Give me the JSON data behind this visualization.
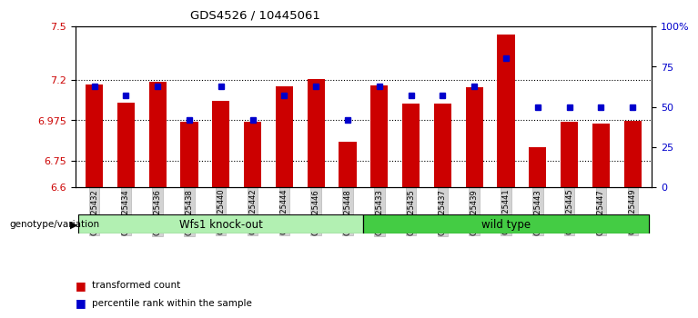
{
  "title": "GDS4526 / 10445061",
  "samples": [
    "GSM825432",
    "GSM825434",
    "GSM825436",
    "GSM825438",
    "GSM825440",
    "GSM825442",
    "GSM825444",
    "GSM825446",
    "GSM825448",
    "GSM825433",
    "GSM825435",
    "GSM825437",
    "GSM825439",
    "GSM825441",
    "GSM825443",
    "GSM825445",
    "GSM825447",
    "GSM825449"
  ],
  "red_values": [
    7.175,
    7.075,
    7.19,
    6.965,
    7.085,
    6.965,
    7.165,
    7.205,
    6.855,
    7.17,
    7.07,
    7.07,
    7.16,
    7.455,
    6.825,
    6.965,
    6.955,
    6.97
  ],
  "blue_percentiles": [
    63,
    57,
    63,
    42,
    63,
    42,
    57,
    63,
    42,
    63,
    57,
    57,
    63,
    80,
    50,
    50,
    50,
    50
  ],
  "ymin": 6.6,
  "ymax": 7.5,
  "yticks": [
    6.6,
    6.75,
    6.975,
    7.2,
    7.5
  ],
  "ytick_labels": [
    "6.6",
    "6.75",
    "6.975",
    "7.2",
    "7.5"
  ],
  "right_yticks": [
    0,
    25,
    50,
    75,
    100
  ],
  "right_ytick_labels": [
    "0",
    "25",
    "50",
    "75",
    "100%"
  ],
  "bar_color": "#cc0000",
  "dot_color": "#0000cc",
  "ko_color": "#b2f0b2",
  "wt_color": "#44cc44",
  "xlabel_left": "genotype/variation",
  "legend_items": [
    "transformed count",
    "percentile rank within the sample"
  ],
  "n_ko": 9,
  "n_wt": 9
}
